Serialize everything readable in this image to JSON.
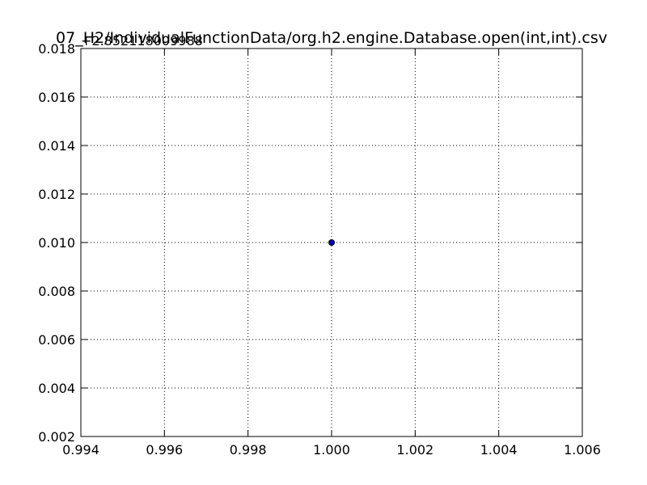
{
  "chart_data": {
    "type": "scatter",
    "title": "07_H2/IndividualFunctionData/org.h2.engine.Database.open(int,int).csv",
    "y_offset_text": "+2.852118009988",
    "xlabel": "",
    "ylabel": "",
    "xlim": [
      0.994,
      1.006
    ],
    "ylim": [
      0.002,
      0.018
    ],
    "x_ticks": [
      0.994,
      0.996,
      0.998,
      1.0,
      1.002,
      1.004,
      1.006
    ],
    "x_tick_labels": [
      "0.994",
      "0.996",
      "0.998",
      "1.000",
      "1.002",
      "1.004",
      "1.006"
    ],
    "y_ticks": [
      0.002,
      0.004,
      0.006,
      0.008,
      0.01,
      0.012,
      0.014,
      0.016,
      0.018
    ],
    "y_tick_labels": [
      "0.002",
      "0.004",
      "0.006",
      "0.008",
      "0.010",
      "0.012",
      "0.014",
      "0.016",
      "0.018"
    ],
    "grid": true,
    "points": [
      {
        "x": 1.0,
        "y": 0.01
      }
    ],
    "colors": {
      "marker_fill": "#0000b3",
      "marker_edge": "#000000",
      "axes": "#000000",
      "grid": "#000000",
      "background": "#ffffff"
    }
  }
}
